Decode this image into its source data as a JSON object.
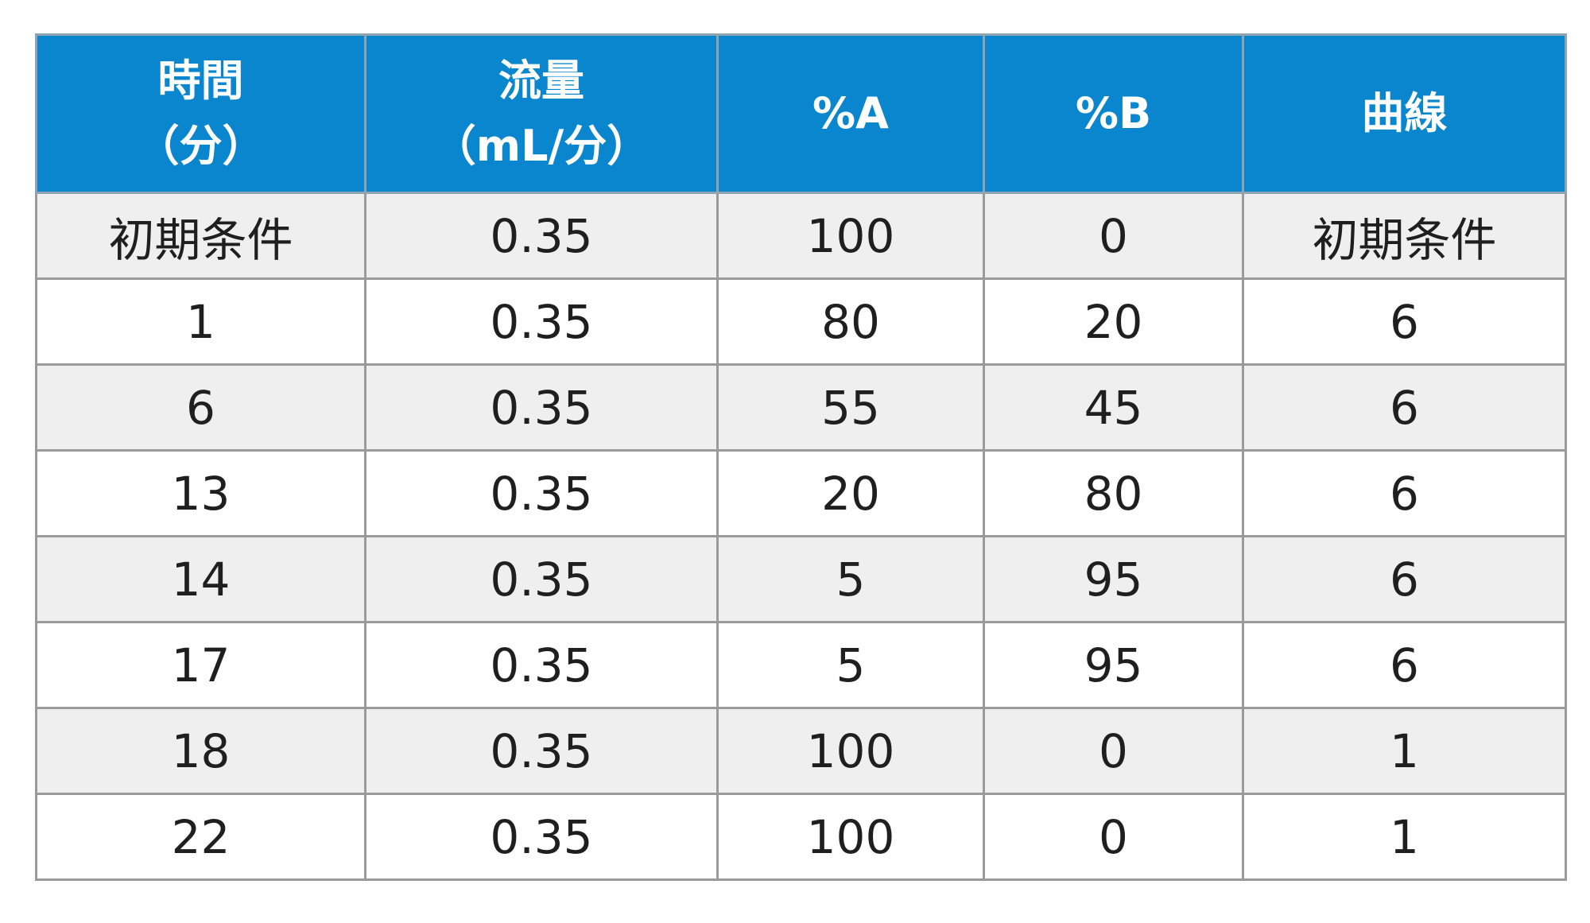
{
  "table": {
    "headers": [
      {
        "line1": "時間",
        "line2": "（分）"
      },
      {
        "line1": "流量",
        "line2": "（mL/分）"
      },
      {
        "line1": "%A",
        "line2": ""
      },
      {
        "line1": "%B",
        "line2": ""
      },
      {
        "line1": "曲線",
        "line2": ""
      }
    ],
    "rows": [
      [
        "初期条件",
        "0.35",
        "100",
        "0",
        "初期条件"
      ],
      [
        "1",
        "0.35",
        "80",
        "20",
        "6"
      ],
      [
        "6",
        "0.35",
        "55",
        "45",
        "6"
      ],
      [
        "13",
        "0.35",
        "20",
        "80",
        "6"
      ],
      [
        "14",
        "0.35",
        "5",
        "95",
        "6"
      ],
      [
        "17",
        "0.35",
        "5",
        "95",
        "6"
      ],
      [
        "18",
        "0.35",
        "100",
        "0",
        "1"
      ],
      [
        "22",
        "0.35",
        "100",
        "0",
        "1"
      ]
    ]
  },
  "colors": {
    "header_background": "#0a86cf",
    "header_text": "#ffffff",
    "row_alt_background": "#efeff0",
    "border": "#9a9a9a"
  }
}
